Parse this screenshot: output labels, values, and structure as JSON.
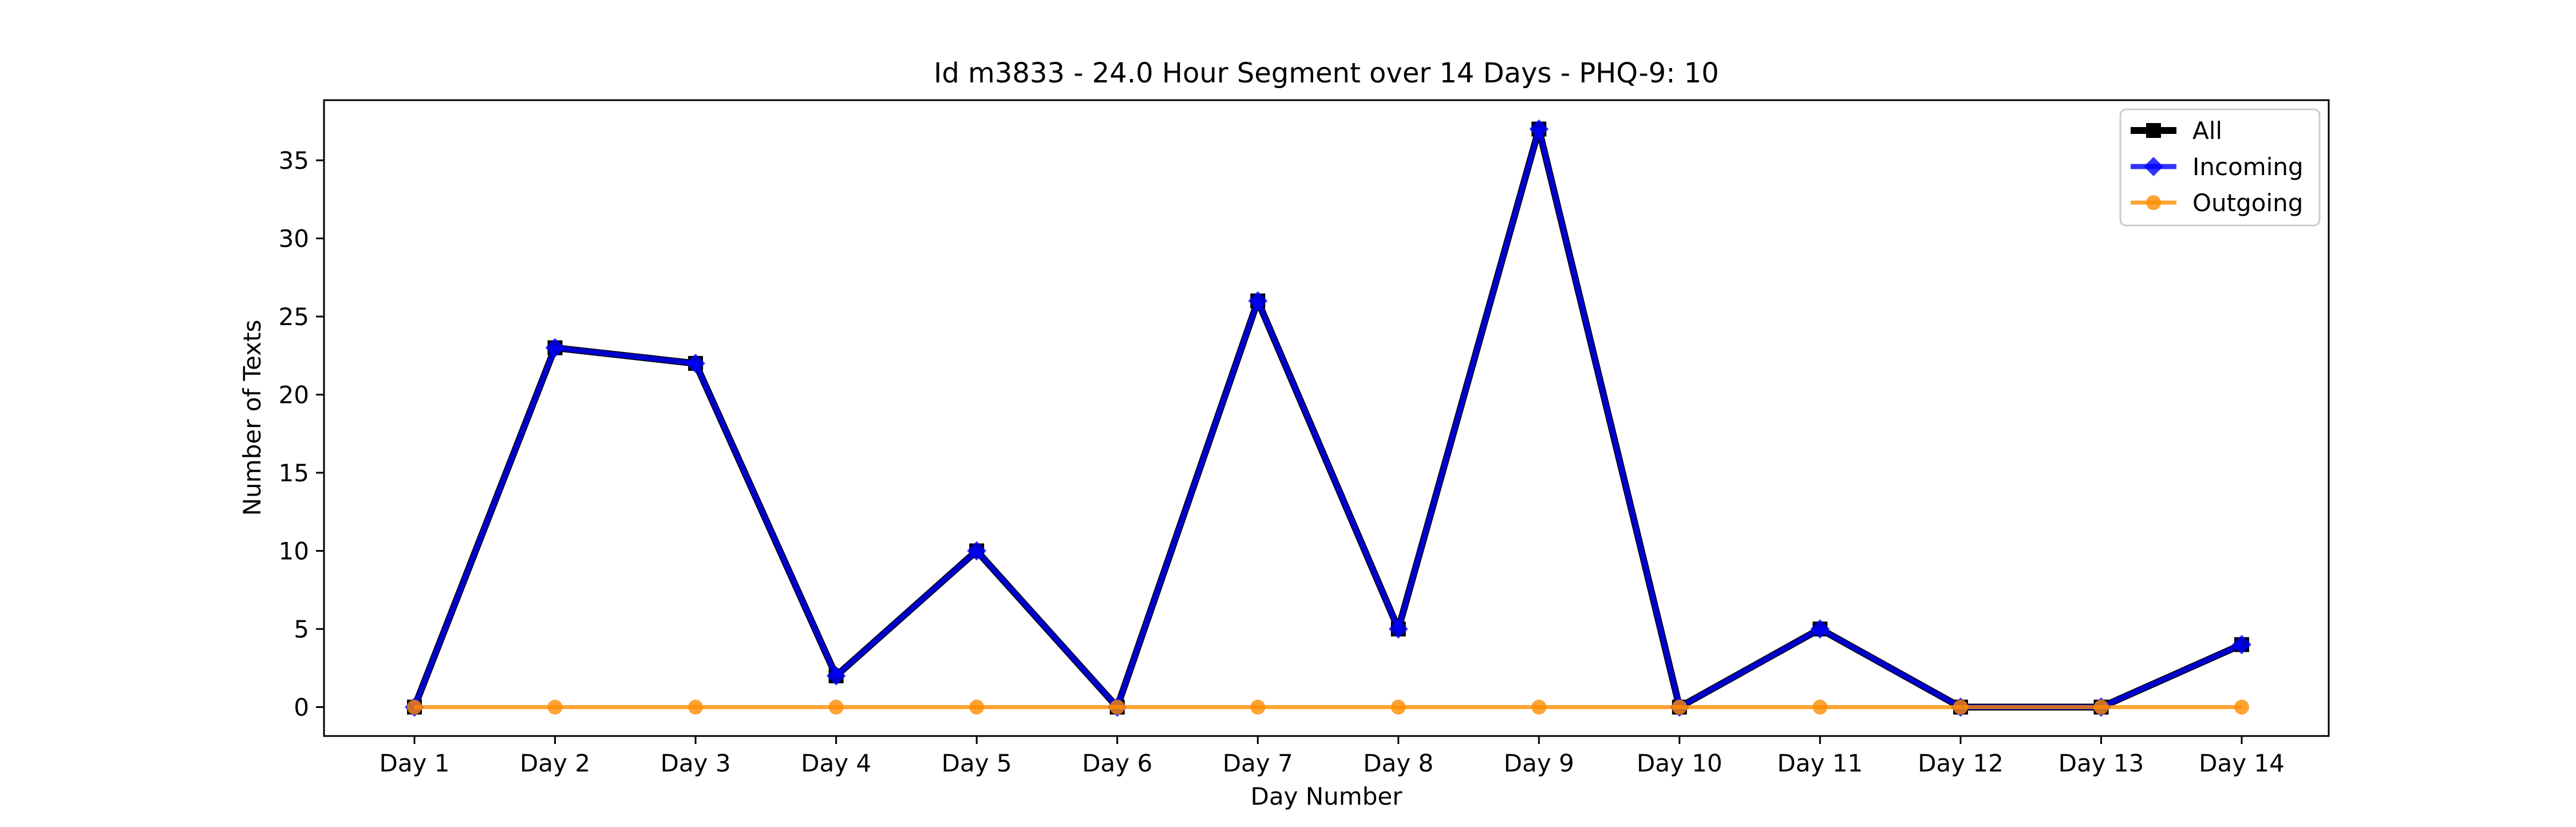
{
  "chart_data": {
    "type": "line",
    "title": "Id m3833 - 24.0 Hour Segment over 14 Days - PHQ-9: 10",
    "xlabel": "Day Number",
    "ylabel": "Number of Texts",
    "categories": [
      "Day 1",
      "Day 2",
      "Day 3",
      "Day 4",
      "Day 5",
      "Day 6",
      "Day 7",
      "Day 8",
      "Day 9",
      "Day 10",
      "Day 11",
      "Day 12",
      "Day 13",
      "Day 14"
    ],
    "ylim": [
      -1.85,
      38.85
    ],
    "yticks": [
      0,
      5,
      10,
      15,
      20,
      25,
      30,
      35
    ],
    "grid": false,
    "legend_position": "top-right",
    "series": [
      {
        "name": "All",
        "color": "#000000",
        "marker": "square",
        "values": [
          0,
          23,
          22,
          2,
          10,
          0,
          26,
          5,
          37,
          0,
          5,
          0,
          0,
          4
        ]
      },
      {
        "name": "Incoming",
        "color": "#0000ff",
        "marker": "diamond",
        "values": [
          0,
          23,
          22,
          2,
          10,
          0,
          26,
          5,
          37,
          0,
          5,
          0,
          0,
          4
        ]
      },
      {
        "name": "Outgoing",
        "color": "#ff8c00",
        "marker": "circle",
        "values": [
          0,
          0,
          0,
          0,
          0,
          0,
          0,
          0,
          0,
          0,
          0,
          0,
          0,
          0
        ]
      }
    ]
  }
}
